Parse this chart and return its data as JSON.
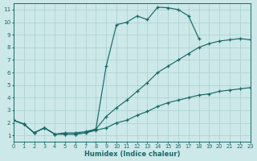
{
  "xlabel": "Humidex (Indice chaleur)",
  "bg_color": "#cce8e8",
  "grid_color": "#aacfcf",
  "line_color": "#1a6868",
  "xlim": [
    0,
    23
  ],
  "ylim": [
    0.5,
    11.5
  ],
  "xticks": [
    0,
    1,
    2,
    3,
    4,
    5,
    6,
    7,
    8,
    9,
    10,
    11,
    12,
    13,
    14,
    15,
    16,
    17,
    18,
    19,
    20,
    21,
    22,
    23
  ],
  "yticks": [
    1,
    2,
    3,
    4,
    5,
    6,
    7,
    8,
    9,
    10,
    11
  ],
  "curve_peak_x": [
    0,
    1,
    2,
    3,
    4,
    5,
    6,
    7,
    8,
    9,
    10,
    11,
    12,
    13,
    14,
    15,
    16,
    17,
    18
  ],
  "curve_peak_y": [
    2.2,
    1.9,
    1.2,
    1.6,
    1.1,
    1.1,
    1.1,
    1.2,
    1.5,
    6.5,
    9.8,
    10.0,
    10.5,
    10.2,
    11.2,
    11.15,
    11.0,
    10.5,
    8.7
  ],
  "curve_top_x": [
    0,
    1,
    2,
    3,
    4,
    5,
    6,
    7,
    8,
    9,
    10,
    11,
    12,
    13,
    14,
    15,
    16,
    17,
    18,
    19,
    20,
    21,
    22,
    23
  ],
  "curve_top_y": [
    2.2,
    1.9,
    1.2,
    1.6,
    1.1,
    1.2,
    1.2,
    1.3,
    1.5,
    2.5,
    3.2,
    3.8,
    4.5,
    5.2,
    6.0,
    6.5,
    7.0,
    7.5,
    8.0,
    8.3,
    8.5,
    8.6,
    8.7,
    8.6
  ],
  "curve_bot_x": [
    0,
    1,
    2,
    3,
    4,
    5,
    6,
    7,
    8,
    9,
    10,
    11,
    12,
    13,
    14,
    15,
    16,
    17,
    18,
    19,
    20,
    21,
    22,
    23
  ],
  "curve_bot_y": [
    2.2,
    1.9,
    1.2,
    1.6,
    1.1,
    1.1,
    1.1,
    1.2,
    1.4,
    1.6,
    2.0,
    2.2,
    2.6,
    2.9,
    3.3,
    3.6,
    3.8,
    4.0,
    4.2,
    4.3,
    4.5,
    4.6,
    4.7,
    4.8
  ]
}
